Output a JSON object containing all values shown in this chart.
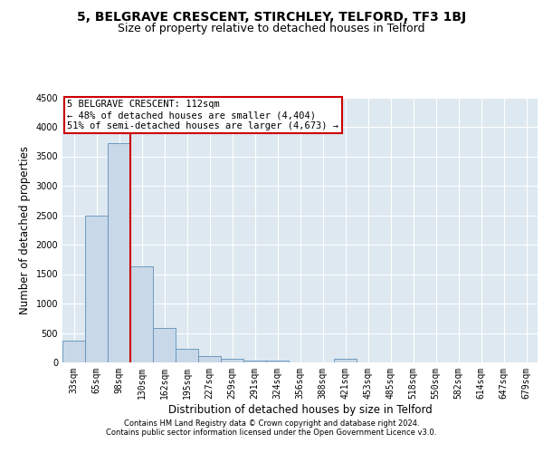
{
  "title_line1": "5, BELGRAVE CRESCENT, STIRCHLEY, TELFORD, TF3 1BJ",
  "title_line2": "Size of property relative to detached houses in Telford",
  "xlabel": "Distribution of detached houses by size in Telford",
  "ylabel": "Number of detached properties",
  "categories": [
    "33sqm",
    "65sqm",
    "98sqm",
    "130sqm",
    "162sqm",
    "195sqm",
    "227sqm",
    "259sqm",
    "291sqm",
    "324sqm",
    "356sqm",
    "388sqm",
    "421sqm",
    "453sqm",
    "485sqm",
    "518sqm",
    "550sqm",
    "582sqm",
    "614sqm",
    "647sqm",
    "679sqm"
  ],
  "values": [
    370,
    2500,
    3720,
    1630,
    590,
    230,
    110,
    65,
    35,
    25,
    0,
    0,
    55,
    0,
    0,
    0,
    0,
    0,
    0,
    0,
    0
  ],
  "bar_color": "#c8d8e8",
  "bar_edge_color": "#6090b8",
  "grid_color": "#cccccc",
  "vline_bar_index": 2,
  "vline_color": "#cc0000",
  "annotation_box_text": "5 BELGRAVE CRESCENT: 112sqm\n← 48% of detached houses are smaller (4,404)\n51% of semi-detached houses are larger (4,673) →",
  "annotation_box_color": "#cc0000",
  "background_color": "#dde8f0",
  "ylim": [
    0,
    4500
  ],
  "yticks": [
    0,
    500,
    1000,
    1500,
    2000,
    2500,
    3000,
    3500,
    4000,
    4500
  ],
  "footer_line1": "Contains HM Land Registry data © Crown copyright and database right 2024.",
  "footer_line2": "Contains public sector information licensed under the Open Government Licence v3.0.",
  "title1_fontsize": 10,
  "title2_fontsize": 9,
  "xlabel_fontsize": 8.5,
  "ylabel_fontsize": 8.5,
  "tick_fontsize": 7,
  "footer_fontsize": 6,
  "ann_fontsize": 7.5
}
